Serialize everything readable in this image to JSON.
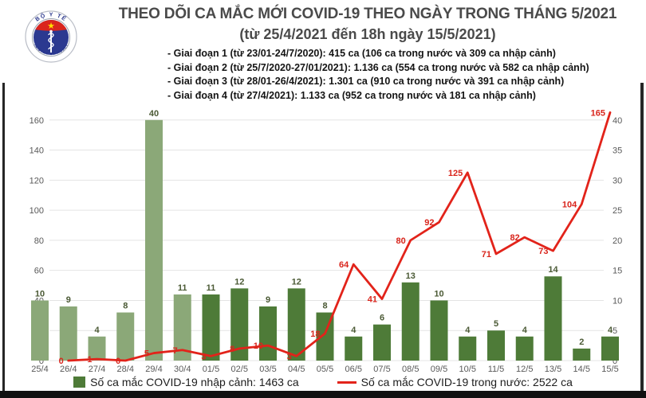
{
  "logo": {
    "top_text": "BỘ Y TẾ",
    "bottom_text": "MINISTRY OF HEALTH"
  },
  "header": {
    "title": "THEO DÕI CA MẮC MỚI COVID-19 THEO NGÀY TRONG THÁNG 5/2021",
    "subtitle": "(từ 25/4/2021 đến 18h ngày 15/5/2021)",
    "phases": [
      "- Giai đoạn 1 (từ 23/01-24/7/2020): 415 ca (106 ca trong nước và 309 ca nhập cảnh)",
      "- Giai đoạn 2 (từ 25/7/2020-27/01/2021): 1.136 ca (554 ca trong nước và 582 ca nhập cảnh)",
      "- Giai đoạn 3 (từ 28/01-26/4/2021): 1.301 ca (910 ca trong nước và 391 ca nhập cảnh)",
      "- Giai đoạn 4 (từ 27/4/2021): 1.133 ca (952 ca trong nước và 181 ca nhập cảnh)"
    ]
  },
  "legend": {
    "imported_label": "Số ca mắc COVID-19 nhập cảnh: 1463 ca",
    "domestic_label": "Số ca mắc COVID-19 trong nước: 2522 ca"
  },
  "colors": {
    "bar_april": "#8ba878",
    "bar_may": "#4e7b38",
    "line_red": "#e2231a",
    "bar_label": "#4b5a35",
    "line_label": "#d9251c",
    "axis_label": "#595959",
    "grid": "#e4e4e4",
    "flag_red": "#da251d",
    "star_gold": "#ffde00",
    "logo_blue": "#2b3990"
  },
  "chart_data": {
    "type": "bar+line combo",
    "title": "THEO DÕI CA MẮC MỚI COVID-19 THEO NGÀY TRONG THÁNG 5/2021",
    "categories": [
      "25/4",
      "26/4",
      "27/4",
      "28/4",
      "29/4",
      "30/4",
      "01/5",
      "02/5",
      "03/5",
      "04/5",
      "05/5",
      "06/5",
      "07/5",
      "08/5",
      "09/5",
      "10/5",
      "11/5",
      "12/5",
      "13/5",
      "14/5",
      "15/5"
    ],
    "series": [
      {
        "name": "Số ca mắc COVID-19 nhập cảnh",
        "type": "bar",
        "axis": "right",
        "values": [
          10,
          9,
          4,
          8,
          40,
          11,
          11,
          12,
          9,
          12,
          8,
          4,
          6,
          13,
          10,
          4,
          5,
          4,
          14,
          2,
          4
        ]
      },
      {
        "name": "Số ca mắc COVID-19 trong nước",
        "type": "line",
        "axis": "left",
        "values": [
          null,
          0,
          1,
          0,
          5,
          7,
          3,
          8,
          10,
          3,
          18,
          64,
          41,
          80,
          92,
          125,
          71,
          82,
          73,
          104,
          165
        ]
      }
    ],
    "left_axis": {
      "ticks": [
        0,
        20,
        40,
        60,
        80,
        100,
        120,
        140,
        160
      ],
      "range": [
        0,
        160
      ]
    },
    "right_axis": {
      "ticks": [
        0,
        5,
        10,
        15,
        20,
        25,
        30,
        35,
        40
      ],
      "range": [
        0,
        40
      ]
    },
    "grid": true,
    "legend_position": "bottom"
  }
}
